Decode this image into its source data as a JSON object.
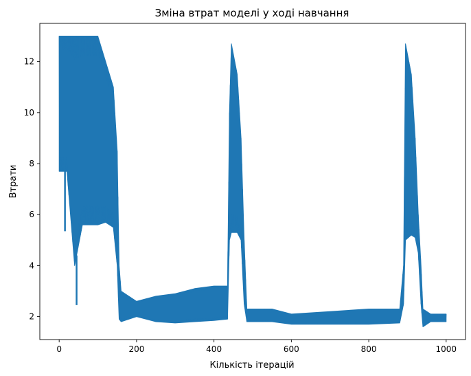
{
  "chart_data": {
    "type": "line",
    "title": "Зміна втрат моделі у ході навчання",
    "xlabel": "Кількість ітерацій",
    "ylabel": "Втрати",
    "xlim": [
      -50,
      1050
    ],
    "ylim": [
      1.1,
      13.5
    ],
    "x_ticks": [
      0,
      200,
      400,
      600,
      800,
      1000
    ],
    "y_ticks": [
      2,
      4,
      6,
      8,
      10,
      12
    ],
    "grid": false,
    "line_color": "#1f77b4",
    "series": [
      {
        "envelope": [
          {
            "x": 0,
            "low": 7.7,
            "high": 13.0
          },
          {
            "x": 20,
            "low": 7.7,
            "high": 13.0
          },
          {
            "x": 40,
            "low": 4.0,
            "high": 13.0
          },
          {
            "x": 60,
            "low": 5.6,
            "high": 13.0
          },
          {
            "x": 80,
            "low": 5.6,
            "high": 13.0
          },
          {
            "x": 100,
            "low": 5.6,
            "high": 13.0
          },
          {
            "x": 120,
            "low": 5.7,
            "high": 12.0
          },
          {
            "x": 140,
            "low": 5.5,
            "high": 11.0
          },
          {
            "x": 150,
            "low": 4.0,
            "high": 8.5
          },
          {
            "x": 155,
            "low": 1.9,
            "high": 4.0
          },
          {
            "x": 160,
            "low": 1.8,
            "high": 3.0
          },
          {
            "x": 200,
            "low": 2.0,
            "high": 2.6
          },
          {
            "x": 250,
            "low": 1.8,
            "high": 2.8
          },
          {
            "x": 300,
            "low": 1.75,
            "high": 2.9
          },
          {
            "x": 350,
            "low": 1.8,
            "high": 3.1
          },
          {
            "x": 400,
            "low": 1.85,
            "high": 3.2
          },
          {
            "x": 435,
            "low": 1.9,
            "high": 3.2
          },
          {
            "x": 440,
            "low": 5.0,
            "high": 10.0
          },
          {
            "x": 445,
            "low": 5.3,
            "high": 12.7
          },
          {
            "x": 460,
            "low": 5.3,
            "high": 11.5
          },
          {
            "x": 470,
            "low": 5.0,
            "high": 9.0
          },
          {
            "x": 478,
            "low": 2.5,
            "high": 5.0
          },
          {
            "x": 485,
            "low": 1.8,
            "high": 2.3
          },
          {
            "x": 550,
            "low": 1.8,
            "high": 2.3
          },
          {
            "x": 600,
            "low": 1.7,
            "high": 2.1
          },
          {
            "x": 700,
            "low": 1.7,
            "high": 2.2
          },
          {
            "x": 800,
            "low": 1.7,
            "high": 2.3
          },
          {
            "x": 880,
            "low": 1.75,
            "high": 2.3
          },
          {
            "x": 890,
            "low": 2.5,
            "high": 4.0
          },
          {
            "x": 895,
            "low": 5.0,
            "high": 12.7
          },
          {
            "x": 910,
            "low": 5.2,
            "high": 11.5
          },
          {
            "x": 920,
            "low": 5.1,
            "high": 9.0
          },
          {
            "x": 928,
            "low": 4.5,
            "high": 6.0
          },
          {
            "x": 935,
            "low": 2.5,
            "high": 4.0
          },
          {
            "x": 940,
            "low": 1.6,
            "high": 2.3
          },
          {
            "x": 960,
            "low": 1.8,
            "high": 2.1
          },
          {
            "x": 1000,
            "low": 1.8,
            "high": 2.1
          }
        ],
        "spikes": [
          {
            "x": 15,
            "low": 5.35
          },
          {
            "x": 45,
            "low": 2.45
          }
        ]
      }
    ]
  }
}
